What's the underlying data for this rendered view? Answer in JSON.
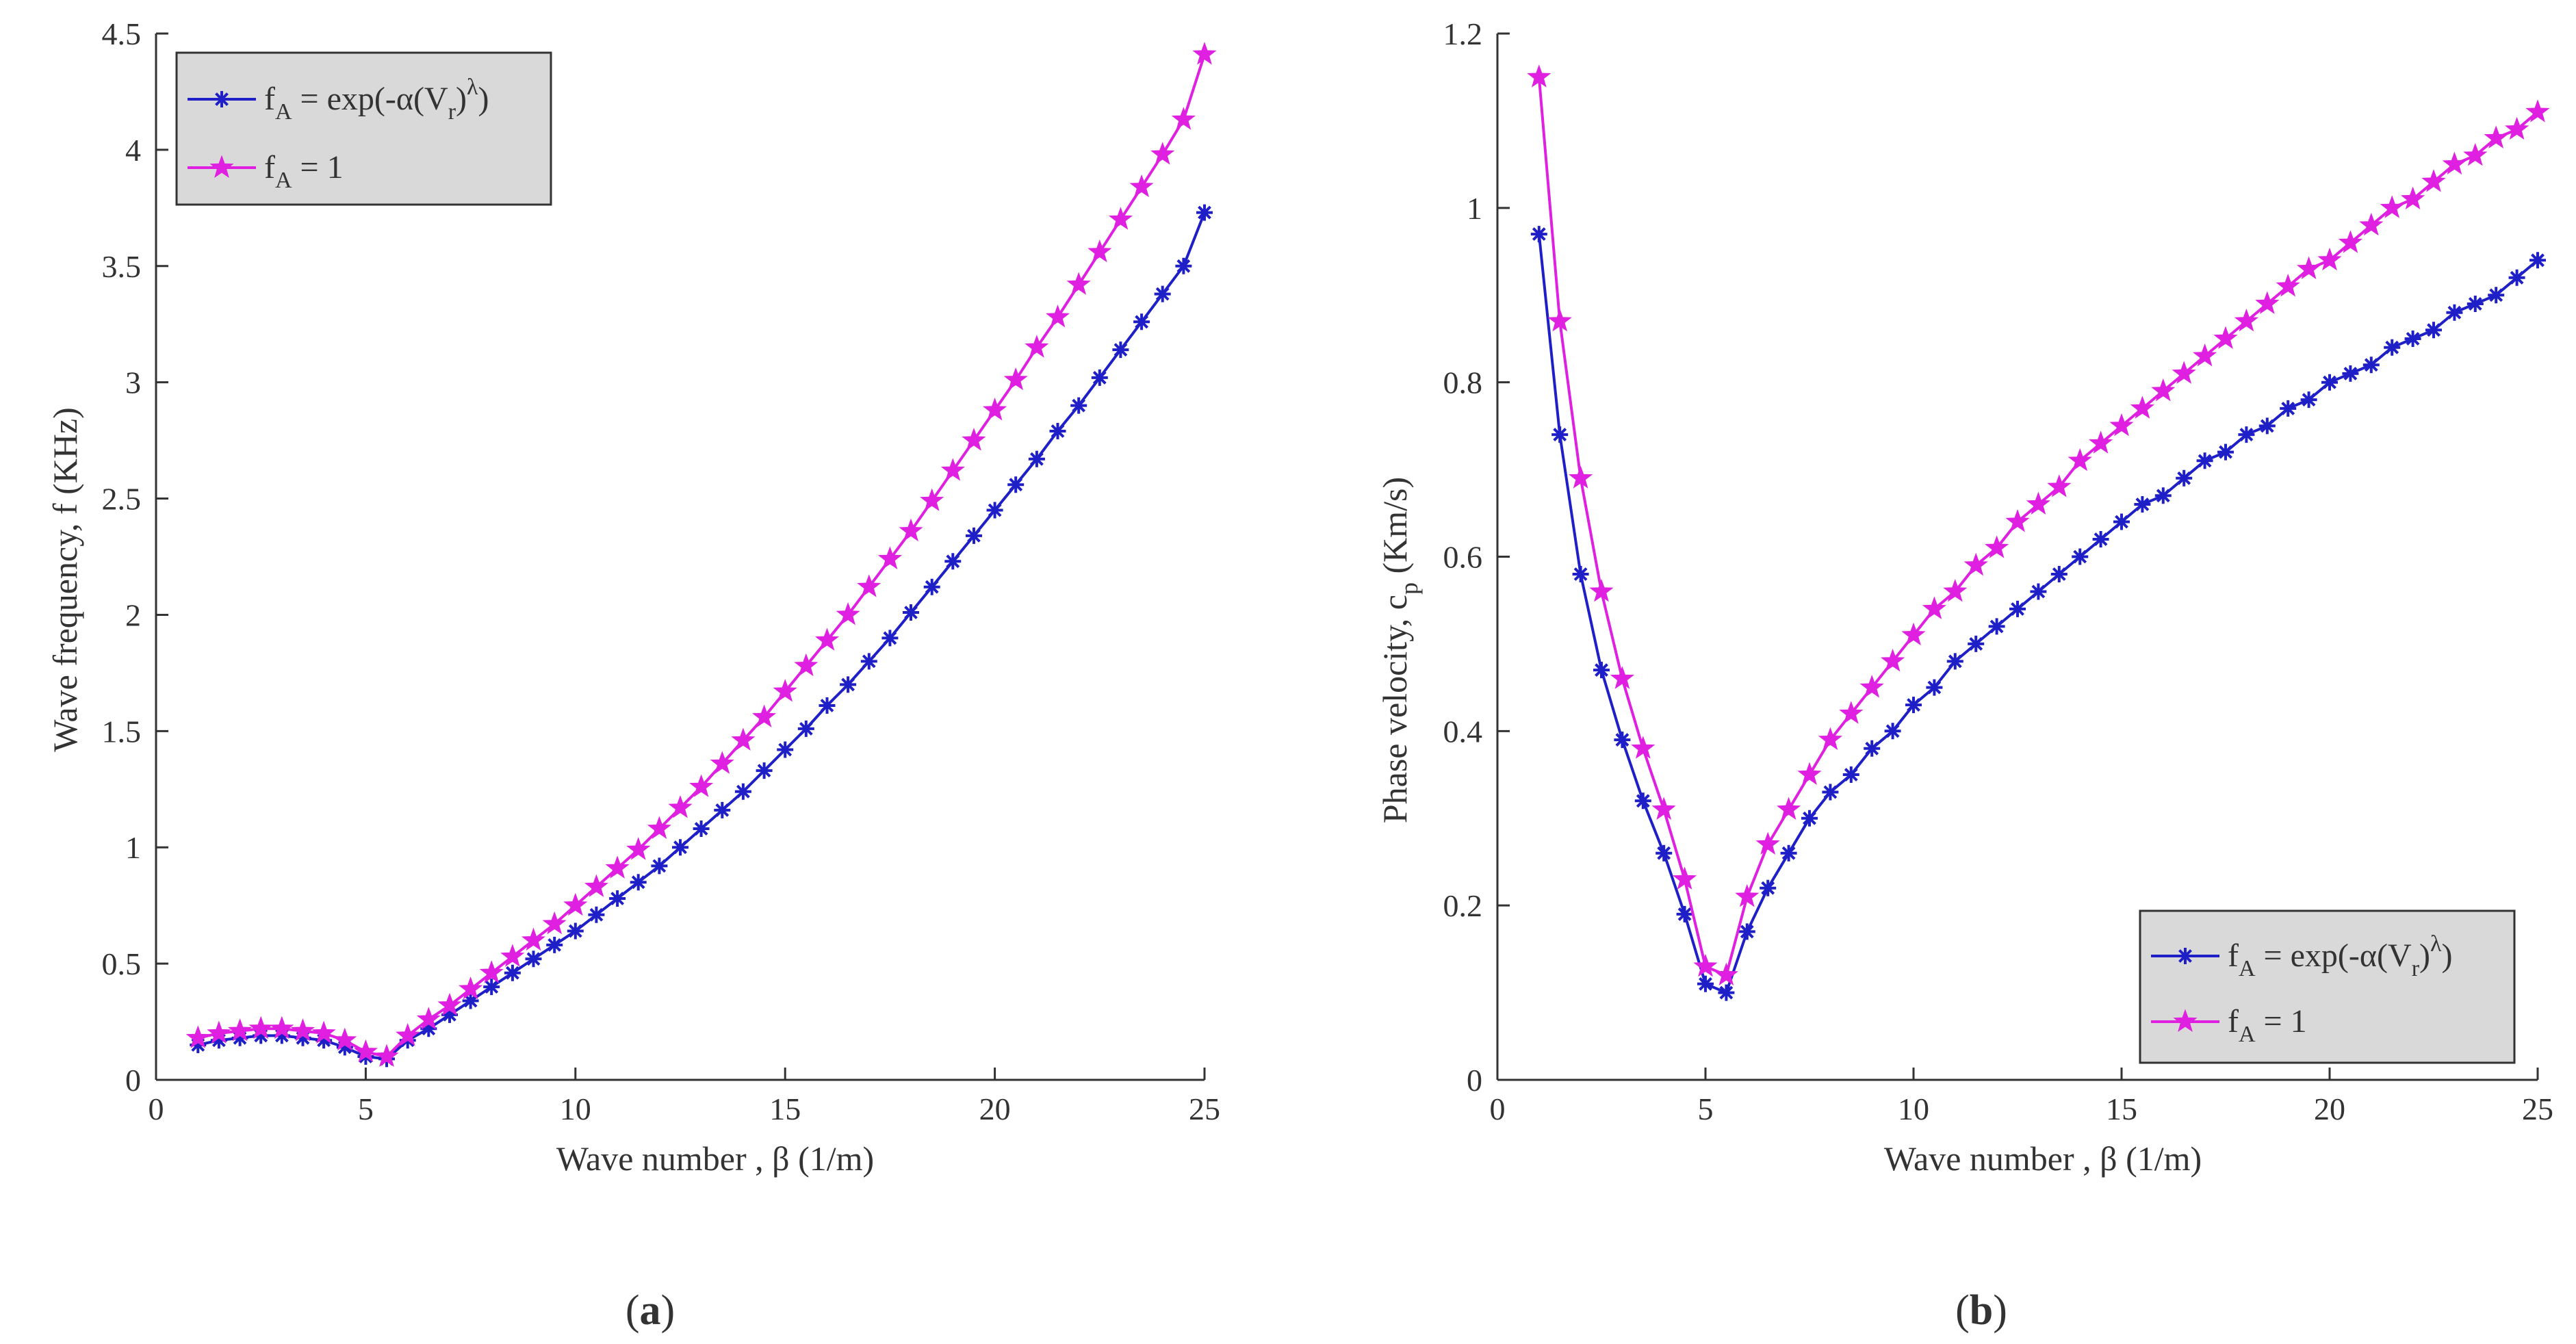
{
  "figure": {
    "panel_labels": [
      {
        "open": "(",
        "letter": "a",
        "close": ")"
      },
      {
        "open": "(",
        "letter": "b",
        "close": ")"
      }
    ]
  },
  "colors": {
    "series_exp": "#1f1fc8",
    "series_one": "#e020e0",
    "axis": "#333333",
    "legend_bg": "#d9d9d9"
  },
  "chart_data": [
    {
      "type": "line",
      "panel": "a",
      "title": "",
      "xlabel": "Wave number , β (1/m)",
      "ylabel": "Wave frequency, f (KHz)",
      "xlim": [
        0,
        25
      ],
      "ylim": [
        0,
        4.5
      ],
      "xticks": [
        0,
        5,
        10,
        15,
        20,
        25
      ],
      "yticks": [
        0,
        0.5,
        1,
        1.5,
        2,
        2.5,
        3,
        3.5,
        4,
        4.5
      ],
      "ytick_labels": [
        "0",
        "0.5",
        "1",
        "1.5",
        "2",
        "2.5",
        "3",
        "3.5",
        "4",
        "4.5"
      ],
      "grid": false,
      "legend_position": "top-left",
      "x": [
        1,
        1.5,
        2,
        2.5,
        3,
        3.5,
        4,
        4.5,
        5,
        5.5,
        6,
        6.5,
        7,
        7.5,
        8,
        8.5,
        9,
        9.5,
        10,
        10.5,
        11,
        11.5,
        12,
        12.5,
        13,
        13.5,
        14,
        14.5,
        15,
        15.5,
        16,
        16.5,
        17,
        17.5,
        18,
        18.5,
        19,
        19.5,
        20,
        20.5,
        21,
        21.5,
        22,
        22.5,
        23,
        23.5,
        24,
        24.5,
        25
      ],
      "series": [
        {
          "name": "f_A = exp(-α(V_r)^λ)",
          "legend": {
            "f": "f",
            "sub_a": "A",
            "mid": " = exp(-α(V",
            "sub_r": "r",
            "close1": ")",
            "sup": "λ",
            "close2": ")"
          },
          "marker": "asterisk",
          "values": [
            0.15,
            0.17,
            0.18,
            0.19,
            0.19,
            0.18,
            0.17,
            0.14,
            0.1,
            0.09,
            0.17,
            0.22,
            0.28,
            0.34,
            0.4,
            0.46,
            0.52,
            0.58,
            0.64,
            0.71,
            0.78,
            0.85,
            0.92,
            1.0,
            1.08,
            1.16,
            1.24,
            1.33,
            1.42,
            1.51,
            1.61,
            1.7,
            1.8,
            1.9,
            2.01,
            2.12,
            2.23,
            2.34,
            2.45,
            2.56,
            2.67,
            2.79,
            2.9,
            3.02,
            3.14,
            3.26,
            3.38,
            3.5,
            3.73
          ]
        },
        {
          "name": "f_A = 1",
          "legend": {
            "f": "f",
            "sub_a": "A",
            "mid": " = 1"
          },
          "marker": "star",
          "values": [
            0.18,
            0.2,
            0.21,
            0.22,
            0.22,
            0.21,
            0.2,
            0.17,
            0.12,
            0.1,
            0.19,
            0.26,
            0.32,
            0.39,
            0.46,
            0.53,
            0.6,
            0.67,
            0.75,
            0.83,
            0.91,
            0.99,
            1.08,
            1.17,
            1.26,
            1.36,
            1.46,
            1.56,
            1.67,
            1.78,
            1.89,
            2.0,
            2.12,
            2.24,
            2.36,
            2.49,
            2.62,
            2.75,
            2.88,
            3.01,
            3.15,
            3.28,
            3.42,
            3.56,
            3.7,
            3.84,
            3.98,
            4.13,
            4.41
          ]
        }
      ]
    },
    {
      "type": "line",
      "panel": "b",
      "title": "",
      "xlabel": "Wave number , β (1/m)",
      "ylabel": "Phase velocity, c",
      "ylabel_sub": "p",
      "ylabel_unit": " (Km/s)",
      "xlim": [
        0,
        25
      ],
      "ylim": [
        0,
        1.2
      ],
      "xticks": [
        0,
        5,
        10,
        15,
        20,
        25
      ],
      "yticks": [
        0,
        0.2,
        0.4,
        0.6,
        0.8,
        1,
        1.2
      ],
      "ytick_labels": [
        "0",
        "0.2",
        "0.4",
        "0.6",
        "0.8",
        "1",
        "1.2"
      ],
      "grid": false,
      "legend_position": "bottom-right",
      "x": [
        1,
        1.5,
        2,
        2.5,
        3,
        3.5,
        4,
        4.5,
        5,
        5.5,
        6,
        6.5,
        7,
        7.5,
        8,
        8.5,
        9,
        9.5,
        10,
        10.5,
        11,
        11.5,
        12,
        12.5,
        13,
        13.5,
        14,
        14.5,
        15,
        15.5,
        16,
        16.5,
        17,
        17.5,
        18,
        18.5,
        19,
        19.5,
        20,
        20.5,
        21,
        21.5,
        22,
        22.5,
        23,
        23.5,
        24,
        24.5,
        25
      ],
      "series": [
        {
          "name": "f_A = exp(-α(V_r)^λ)",
          "legend": {
            "f": "f",
            "sub_a": "A",
            "mid": " = exp(-α(V",
            "sub_r": "r",
            "close1": ")",
            "sup": "λ",
            "close2": ")"
          },
          "marker": "asterisk",
          "values": [
            0.97,
            0.74,
            0.58,
            0.47,
            0.39,
            0.32,
            0.26,
            0.19,
            0.11,
            0.1,
            0.17,
            0.22,
            0.26,
            0.3,
            0.33,
            0.35,
            0.38,
            0.4,
            0.43,
            0.45,
            0.48,
            0.5,
            0.52,
            0.54,
            0.56,
            0.58,
            0.6,
            0.62,
            0.64,
            0.66,
            0.67,
            0.69,
            0.71,
            0.72,
            0.74,
            0.75,
            0.77,
            0.78,
            0.8,
            0.81,
            0.82,
            0.84,
            0.85,
            0.86,
            0.88,
            0.89,
            0.9,
            0.92,
            0.94
          ]
        },
        {
          "name": "f_A = 1",
          "legend": {
            "f": "f",
            "sub_a": "A",
            "mid": " = 1"
          },
          "marker": "star",
          "values": [
            1.15,
            0.87,
            0.69,
            0.56,
            0.46,
            0.38,
            0.31,
            0.23,
            0.13,
            0.12,
            0.21,
            0.27,
            0.31,
            0.35,
            0.39,
            0.42,
            0.45,
            0.48,
            0.51,
            0.54,
            0.56,
            0.59,
            0.61,
            0.64,
            0.66,
            0.68,
            0.71,
            0.73,
            0.75,
            0.77,
            0.79,
            0.81,
            0.83,
            0.85,
            0.87,
            0.89,
            0.91,
            0.93,
            0.94,
            0.96,
            0.98,
            1.0,
            1.01,
            1.03,
            1.05,
            1.06,
            1.08,
            1.09,
            1.11
          ]
        }
      ]
    }
  ]
}
